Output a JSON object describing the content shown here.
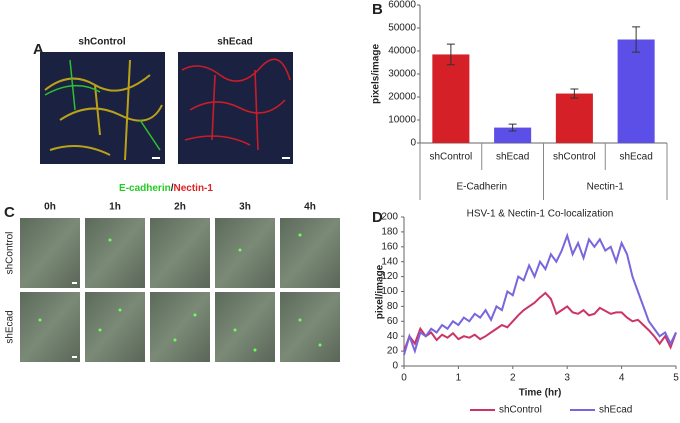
{
  "panel_labels": [
    "A",
    "B",
    "C",
    "D"
  ],
  "panel_a": {
    "columns": [
      "shControl",
      "shEcad"
    ],
    "caption": [
      {
        "text": "E-cadherin",
        "color": "#22cc22"
      },
      {
        "text": "/",
        "color": "#222222"
      },
      {
        "text": "Nectin-1",
        "color": "#dd2222"
      }
    ]
  },
  "panel_c": {
    "columns": [
      "0h",
      "1h",
      "2h",
      "3h",
      "4h"
    ],
    "rows": [
      "shControl",
      "shEcad"
    ]
  },
  "chart_data": [
    {
      "type": "bar",
      "y_label": "pixels/image",
      "ylim": [
        0,
        60000
      ],
      "yticks": [
        0,
        10000,
        20000,
        30000,
        40000,
        50000,
        60000
      ],
      "groups": [
        {
          "name": "E-Cadherin",
          "categories": [
            "shControl",
            "shEcad"
          ],
          "values": [
            38500,
            6700
          ],
          "errors": [
            4500,
            1500
          ],
          "colors": [
            "#d42026",
            "#5b4fe8"
          ]
        },
        {
          "name": "Nectin-1",
          "categories": [
            "shControl",
            "shEcad"
          ],
          "values": [
            21500,
            45000
          ],
          "errors": [
            2000,
            5500
          ],
          "colors": [
            "#d42026",
            "#5b4fe8"
          ]
        }
      ]
    },
    {
      "type": "line",
      "title": "HSV-1 & Nectin-1 Co-localization",
      "x_label": "Time (hr)",
      "y_label": "pixel/image",
      "xlim": [
        0,
        5
      ],
      "xticks": [
        0,
        1,
        2,
        3,
        4,
        5
      ],
      "ylim": [
        0,
        200
      ],
      "yticks": [
        0,
        20,
        40,
        60,
        80,
        100,
        120,
        140,
        160,
        180,
        200
      ],
      "x": [
        0,
        0.1,
        0.2,
        0.3,
        0.4,
        0.5,
        0.6,
        0.7,
        0.8,
        0.9,
        1,
        1.1,
        1.2,
        1.3,
        1.4,
        1.5,
        1.6,
        1.7,
        1.8,
        1.9,
        2,
        2.1,
        2.2,
        2.3,
        2.4,
        2.5,
        2.6,
        2.7,
        2.8,
        2.9,
        3,
        3.1,
        3.2,
        3.3,
        3.4,
        3.5,
        3.6,
        3.7,
        3.8,
        3.9,
        4,
        4.1,
        4.2,
        4.3,
        4.4,
        4.5,
        4.6,
        4.7,
        4.8,
        4.9,
        5
      ],
      "series": [
        {
          "name": "shControl",
          "color": "#cc3366",
          "values": [
            20,
            40,
            30,
            50,
            40,
            45,
            35,
            42,
            38,
            44,
            36,
            40,
            38,
            42,
            36,
            40,
            45,
            50,
            55,
            52,
            60,
            68,
            75,
            80,
            85,
            92,
            98,
            90,
            70,
            75,
            80,
            72,
            70,
            75,
            68,
            70,
            78,
            74,
            70,
            72,
            72,
            65,
            60,
            62,
            55,
            48,
            40,
            30,
            40,
            25,
            45
          ]
        },
        {
          "name": "shEcad",
          "color": "#7766dd",
          "values": [
            15,
            40,
            20,
            45,
            40,
            50,
            45,
            55,
            50,
            60,
            55,
            65,
            60,
            70,
            65,
            75,
            62,
            80,
            75,
            100,
            95,
            120,
            115,
            135,
            120,
            140,
            130,
            150,
            140,
            155,
            175,
            150,
            165,
            145,
            170,
            160,
            170,
            155,
            160,
            140,
            165,
            150,
            120,
            100,
            80,
            60,
            50,
            40,
            45,
            30,
            45
          ]
        }
      ]
    }
  ]
}
